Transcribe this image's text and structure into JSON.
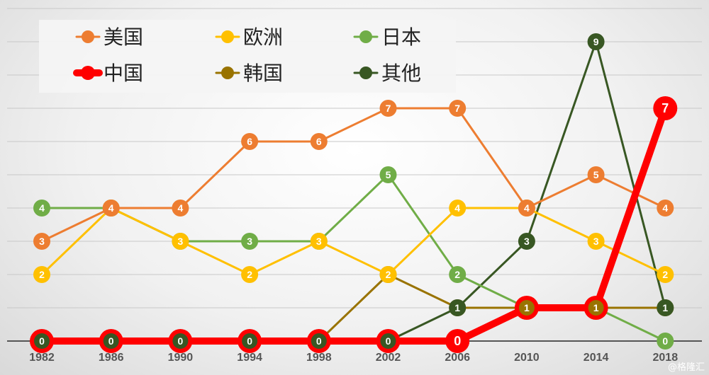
{
  "chart_data": {
    "type": "line",
    "title": "",
    "xlabel": "",
    "ylabel": "",
    "x": [
      "1982",
      "1986",
      "1990",
      "1994",
      "1998",
      "2002",
      "2006",
      "2010",
      "2014",
      "2018"
    ],
    "ylim": [
      0,
      10
    ],
    "grid": true,
    "legend_position": "top-left",
    "series": [
      {
        "name": "美国",
        "color": "#ED7D31",
        "values": [
          3,
          4,
          4,
          6,
          6,
          7,
          7,
          4,
          5,
          4
        ]
      },
      {
        "name": "欧洲",
        "color": "#FFC000",
        "values": [
          2,
          4,
          3,
          2,
          3,
          2,
          4,
          4,
          3,
          2
        ]
      },
      {
        "name": "日本",
        "color": "#70AD47",
        "values": [
          4,
          4,
          3,
          3,
          3,
          5,
          2,
          1,
          1,
          0
        ]
      },
      {
        "name": "中国",
        "color": "#FF0000",
        "values": [
          0,
          0,
          0,
          0,
          0,
          0,
          0,
          1,
          1,
          7
        ]
      },
      {
        "name": "韩国",
        "color": "#997300",
        "values": [
          0,
          0,
          0,
          0,
          0,
          2,
          1,
          1,
          1,
          1
        ]
      },
      {
        "name": "其他",
        "color": "#385723",
        "values": [
          0,
          0,
          0,
          0,
          0,
          0,
          1,
          3,
          9,
          1
        ]
      }
    ]
  },
  "watermark": "@格隆汇"
}
